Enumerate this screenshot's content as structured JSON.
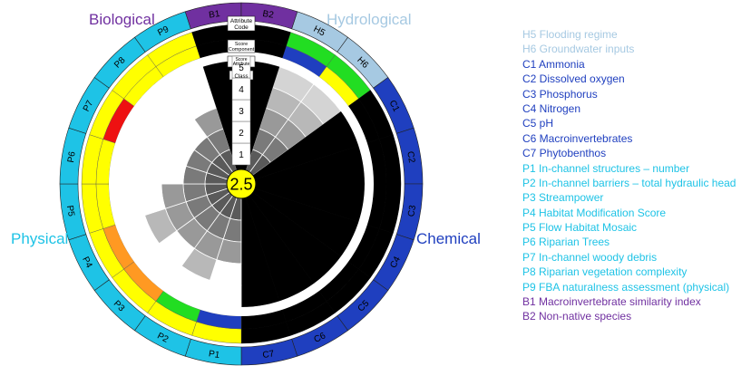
{
  "colors": {
    "biological": "#7030A0",
    "hydrological": "#A6C9E2",
    "chemical": "#1F3FBF",
    "physical": "#1EC3E6",
    "green": "#22DD22",
    "yellow": "#FFFF00",
    "orange": "#FF9922",
    "red": "#EE1111",
    "center": "#FFFF00"
  },
  "categories": {
    "biological": "Biological",
    "hydrological": "Hydrological",
    "physical": "Physical",
    "chemical": "Chemical"
  },
  "wheel": {
    "score": "2.5",
    "header_labels": [
      "Attribute Code",
      "Score Component",
      "Score Attribute",
      "Class"
    ],
    "class_labels": [
      "1",
      "2",
      "3",
      "4",
      "5"
    ],
    "sectors": [
      {
        "code": "H5",
        "group": "hydrological",
        "component": "green",
        "attribute": "blue",
        "class": 5,
        "inner": "none"
      },
      {
        "code": "H6",
        "group": "hydrological",
        "component": "green",
        "attribute": "yellow",
        "class": 5,
        "inner": "none"
      },
      {
        "code": "C1",
        "group": "chemical",
        "component": "black",
        "attribute": "black",
        "class": 5,
        "inner": "black"
      },
      {
        "code": "C2",
        "group": "chemical",
        "component": "black",
        "attribute": "black",
        "class": 5,
        "inner": "black"
      },
      {
        "code": "C3",
        "group": "chemical",
        "component": "black",
        "attribute": "black",
        "class": 5,
        "inner": "black"
      },
      {
        "code": "C4",
        "group": "chemical",
        "component": "black",
        "attribute": "black",
        "class": 5,
        "inner": "black"
      },
      {
        "code": "C5",
        "group": "chemical",
        "component": "black",
        "attribute": "black",
        "class": 5,
        "inner": "black"
      },
      {
        "code": "C6",
        "group": "chemical",
        "component": "black",
        "attribute": "black",
        "class": 5,
        "inner": "black"
      },
      {
        "code": "C7",
        "group": "chemical",
        "component": "black",
        "attribute": "black",
        "class": 5,
        "inner": "black"
      },
      {
        "code": "P1",
        "group": "physical",
        "component": "yellow",
        "attribute": "blue",
        "class": 3,
        "inner": "grey"
      },
      {
        "code": "P2",
        "group": "physical",
        "component": "yellow",
        "attribute": "green",
        "class": 4,
        "inner": "grey"
      },
      {
        "code": "P3",
        "group": "physical",
        "component": "yellow",
        "attribute": "orange",
        "class": 3,
        "inner": "grey"
      },
      {
        "code": "P4",
        "group": "physical",
        "component": "yellow",
        "attribute": "orange",
        "class": 4,
        "inner": "grey"
      },
      {
        "code": "P5",
        "group": "physical",
        "component": "yellow",
        "attribute": "yellow",
        "class": 3,
        "inner": "grey"
      },
      {
        "code": "P6",
        "group": "physical",
        "component": "yellow",
        "attribute": "yellow",
        "class": 2,
        "inner": "grey"
      },
      {
        "code": "P7",
        "group": "physical",
        "component": "yellow",
        "attribute": "red",
        "class": 2,
        "inner": "grey"
      },
      {
        "code": "P8",
        "group": "physical",
        "component": "yellow",
        "attribute": "yellow",
        "class": 2,
        "inner": "grey"
      },
      {
        "code": "P9",
        "group": "physical",
        "component": "yellow",
        "attribute": "yellow",
        "class": 3,
        "inner": "grey"
      },
      {
        "code": "B1",
        "group": "biological",
        "component": "black",
        "attribute": "black",
        "class": 5,
        "inner": "black"
      },
      {
        "code": "B2",
        "group": "biological",
        "component": "black",
        "attribute": "black",
        "class": 5,
        "inner": "black"
      }
    ]
  },
  "legend": [
    {
      "text": "H5 Flooding regime",
      "group": "hydrological"
    },
    {
      "text": "H6 Groundwater inputs",
      "group": "hydrological"
    },
    {
      "text": "C1 Ammonia",
      "group": "chemical"
    },
    {
      "text": "C2 Dissolved oxygen",
      "group": "chemical"
    },
    {
      "text": "C3 Phosphorus",
      "group": "chemical"
    },
    {
      "text": "C4 Nitrogen",
      "group": "chemical"
    },
    {
      "text": "C5 pH",
      "group": "chemical"
    },
    {
      "text": "C6 Macroinvertebrates",
      "group": "chemical"
    },
    {
      "text": "C7 Phytobenthos",
      "group": "chemical"
    },
    {
      "text": "P1 In-channel structures – number",
      "group": "physical"
    },
    {
      "text": "P2 In-channel barriers – total hydraulic head",
      "group": "physical"
    },
    {
      "text": "P3 Streampower",
      "group": "physical"
    },
    {
      "text": "P4 Habitat Modification Score",
      "group": "physical"
    },
    {
      "text": "P5 Flow Habitat Mosaic",
      "group": "physical"
    },
    {
      "text": "P6 Riparian Trees",
      "group": "physical"
    },
    {
      "text": "P7 In-channel woody debris",
      "group": "physical"
    },
    {
      "text": "P8 Riparian vegetation complexity",
      "group": "physical"
    },
    {
      "text": "P9 FBA naturalness assessment (physical)",
      "group": "physical"
    },
    {
      "text": "B1 Macroinvertebrate similarity index",
      "group": "biological"
    },
    {
      "text": "B2 Non-native species",
      "group": "biological"
    }
  ]
}
